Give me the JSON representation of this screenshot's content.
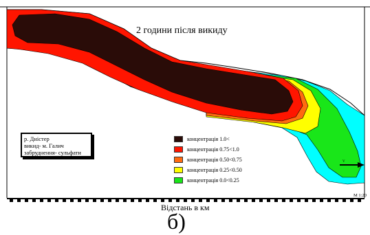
{
  "map": {
    "title": "2 години після викиду",
    "info_box": {
      "lines": [
        "р. Дністер",
        "викид- м. Галич",
        "забруднення- сульфати"
      ]
    },
    "legend": [
      {
        "label": "концентрація 1.0<",
        "color": "#2a0c08"
      },
      {
        "label": "концентрація 0.75<1.0",
        "color": "#ff1500"
      },
      {
        "label": "концентрація 0.50<0.75",
        "color": "#ff6a10"
      },
      {
        "label": "концентрація 0.25<0.50",
        "color": "#ffff00"
      },
      {
        "label": "концентрація 0.0<0.25",
        "color": "#19e619"
      }
    ],
    "outer_zone_color": "#00ffff",
    "flow_label": "V",
    "scale_text": "M 1:20",
    "axis_title": "Відстань в км",
    "panel_letter": "б)"
  }
}
